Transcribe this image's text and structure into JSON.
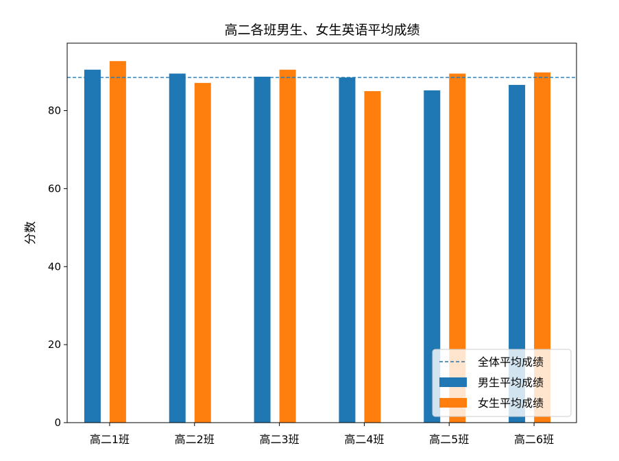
{
  "chart_data": {
    "type": "bar",
    "title": "高二各班男生、女生英语平均成绩",
    "xlabel": "",
    "ylabel": "分数",
    "categories": [
      "高二1班",
      "高二2班",
      "高二3班",
      "高二4班",
      "高二5班",
      "高二6班"
    ],
    "series": [
      {
        "name": "男生平均成绩",
        "color": "#1f77b4",
        "values": [
          90.5,
          89.5,
          88.7,
          88.5,
          85.2,
          86.6
        ]
      },
      {
        "name": "女生平均成绩",
        "color": "#ff7f0e",
        "values": [
          92.7,
          87.1,
          90.5,
          85.0,
          89.5,
          89.8
        ]
      }
    ],
    "reference_line": {
      "name": "全体平均成绩",
      "value": 88.5,
      "color": "#1f77b4",
      "style": "dashed"
    },
    "yticks": [
      0,
      20,
      40,
      60,
      80
    ],
    "ylim": [
      0,
      97.3
    ],
    "grid": false,
    "legend_position": "lower-right"
  }
}
